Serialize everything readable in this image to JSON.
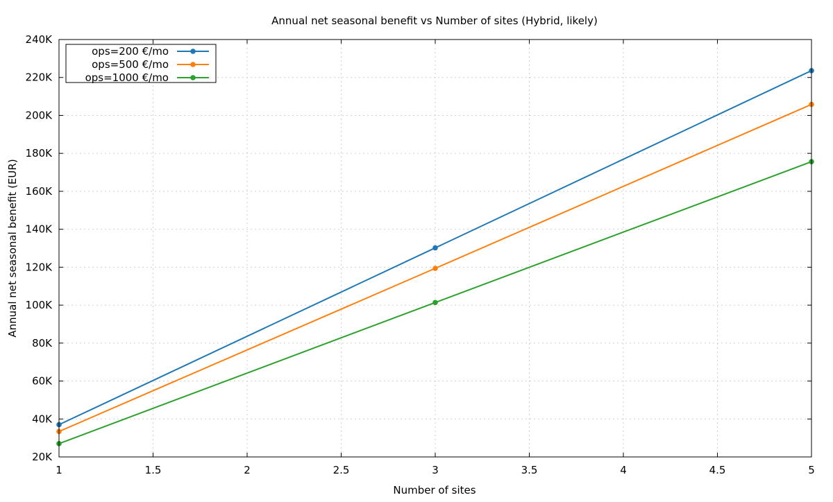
{
  "chart_data": {
    "type": "line",
    "title": "Annual net seasonal benefit vs Number of sites (Hybrid, likely)",
    "xlabel": "Number of sites",
    "ylabel": "Annual net seasonal benefit (EUR)",
    "xlim": [
      1,
      5
    ],
    "ylim": [
      20000,
      240000
    ],
    "xticks": [
      1,
      1.5,
      2,
      2.5,
      3,
      3.5,
      4,
      4.5,
      5
    ],
    "xtick_labels": [
      "1",
      "1.5",
      "2",
      "2.5",
      "3",
      "3.5",
      "4",
      "4.5",
      "5"
    ],
    "yticks": [
      20000,
      40000,
      60000,
      80000,
      100000,
      120000,
      140000,
      160000,
      180000,
      200000,
      220000,
      240000
    ],
    "ytick_labels": [
      "20K",
      "40K",
      "60K",
      "80K",
      "100K",
      "120K",
      "140K",
      "160K",
      "180K",
      "200K",
      "220K",
      "240K"
    ],
    "grid": true,
    "legend_position": "top-left",
    "x": [
      1,
      3,
      5
    ],
    "series": [
      {
        "name": "ops=200 €/mo",
        "color": "#1f77b4",
        "values": [
          37000,
          130200,
          223600
        ]
      },
      {
        "name": "ops=500 €/mo",
        "color": "#ff7f0e",
        "values": [
          33400,
          119400,
          205800
        ]
      },
      {
        "name": "ops=1000 €/mo",
        "color": "#2ca02c",
        "values": [
          27000,
          101400,
          175600
        ]
      }
    ]
  }
}
